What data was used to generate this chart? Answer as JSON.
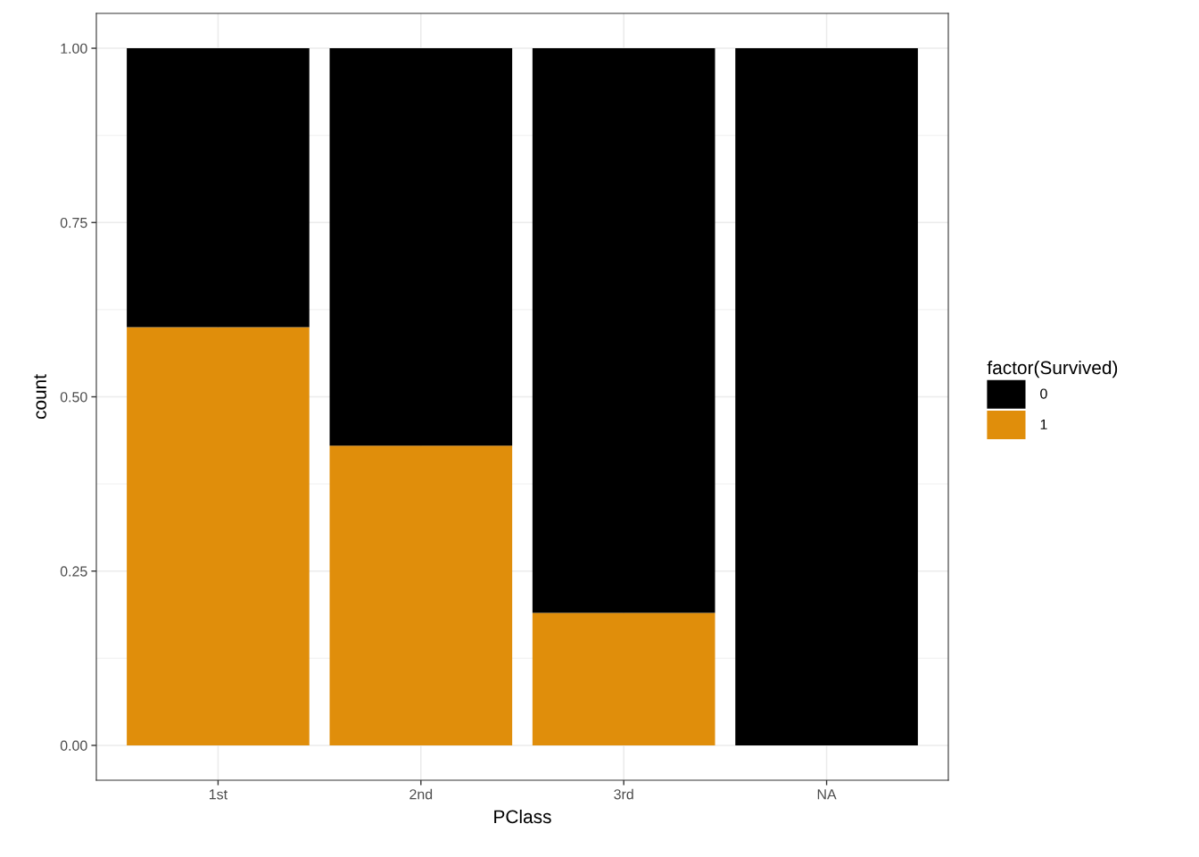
{
  "chart_data": {
    "type": "bar",
    "xlabel": "PClass",
    "ylabel": "count",
    "legend_title": "factor(Survived)",
    "categories": [
      "1st",
      "2nd",
      "3rd",
      "NA"
    ],
    "series": [
      {
        "name": "1",
        "color": "#e08e0b",
        "values": [
          0.6,
          0.43,
          0.19,
          0
        ]
      },
      {
        "name": "0",
        "color": "#000000",
        "values": [
          0.4,
          0.57,
          0.81,
          1.0
        ]
      }
    ],
    "stacked": true,
    "ylim": [
      -0.05,
      1.05
    ],
    "yticks": [
      {
        "value": 0,
        "label": "0.00"
      },
      {
        "value": 0.25,
        "label": "0.25"
      },
      {
        "value": 0.5,
        "label": "0.50"
      },
      {
        "value": 0.75,
        "label": "0.75"
      },
      {
        "value": 1,
        "label": "1.00"
      }
    ],
    "grid": true,
    "legend": "right"
  }
}
